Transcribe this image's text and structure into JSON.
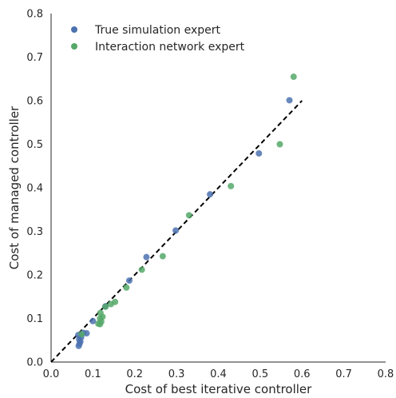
{
  "chart_data": {
    "type": "scatter",
    "xlabel": "Cost of best iterative controller",
    "ylabel": "Cost of managed controller",
    "xlim": [
      0.0,
      0.8
    ],
    "ylim": [
      0.0,
      0.8
    ],
    "xticks": [
      "0.0",
      "0.1",
      "0.2",
      "0.3",
      "0.4",
      "0.5",
      "0.6",
      "0.7",
      "0.8"
    ],
    "yticks": [
      "0.0",
      "0.1",
      "0.2",
      "0.3",
      "0.4",
      "0.5",
      "0.6",
      "0.7",
      "0.8"
    ],
    "grid": false,
    "legend_position": "top-left",
    "reference_line": {
      "style": "dashed",
      "color": "#000000",
      "x": [
        0.0,
        0.6
      ],
      "y": [
        0.0,
        0.6
      ]
    },
    "series": [
      {
        "name": "True simulation expert",
        "color": "#4C72B0",
        "points": [
          [
            0.066,
            0.037
          ],
          [
            0.068,
            0.042
          ],
          [
            0.07,
            0.047
          ],
          [
            0.067,
            0.052
          ],
          [
            0.072,
            0.057
          ],
          [
            0.065,
            0.062
          ],
          [
            0.077,
            0.067
          ],
          [
            0.085,
            0.066
          ],
          [
            0.1,
            0.094
          ],
          [
            0.13,
            0.128
          ],
          [
            0.187,
            0.187
          ],
          [
            0.228,
            0.241
          ],
          [
            0.298,
            0.302
          ],
          [
            0.38,
            0.385
          ],
          [
            0.497,
            0.479
          ],
          [
            0.57,
            0.601
          ]
        ]
      },
      {
        "name": "Interaction network expert",
        "color": "#55A868",
        "points": [
          [
            0.073,
            0.064
          ],
          [
            0.113,
            0.088
          ],
          [
            0.117,
            0.087
          ],
          [
            0.12,
            0.093
          ],
          [
            0.117,
            0.1
          ],
          [
            0.123,
            0.104
          ],
          [
            0.118,
            0.113
          ],
          [
            0.13,
            0.127
          ],
          [
            0.143,
            0.133
          ],
          [
            0.153,
            0.138
          ],
          [
            0.18,
            0.171
          ],
          [
            0.217,
            0.212
          ],
          [
            0.267,
            0.243
          ],
          [
            0.33,
            0.337
          ],
          [
            0.43,
            0.404
          ],
          [
            0.547,
            0.5
          ],
          [
            0.58,
            0.655
          ]
        ]
      }
    ]
  }
}
